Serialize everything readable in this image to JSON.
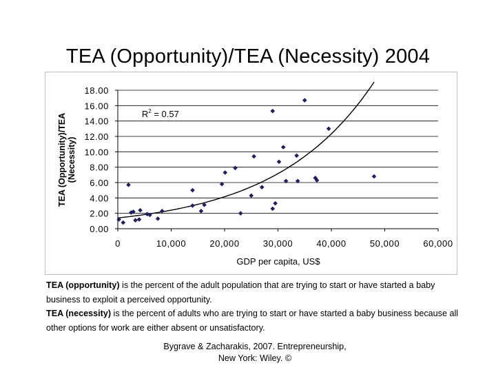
{
  "title": "TEA (Opportunity)/TEA (Necessity) 2004",
  "notes": [
    {
      "term": "TEA (opportunity)",
      "text": " is the percent of the adult population that are trying to start or have started a baby business to exploit a perceived opportunity."
    },
    {
      "term": "TEA (necessity)",
      "text": " is the percent of adults who are trying to start or have started a baby business because all other options for work are either absent or unsatisfactory."
    }
  ],
  "citation": {
    "line1": "Bygrave & Zacharakis, 2007.  Entrepreneurship,",
    "line2": "New York: Wiley.  ©"
  },
  "colors": {
    "points": "#1f1f5c",
    "trend": "#000000",
    "grid": "#000000"
  },
  "chart_data": {
    "type": "scatter",
    "xlabel": "GDP per capita, US$",
    "ylabel": "TEA (Opportunity)/TEA (Necessity)",
    "xlim": [
      0,
      60000
    ],
    "ylim": [
      0,
      18
    ],
    "xticks": [
      0,
      10000,
      20000,
      30000,
      40000,
      50000,
      60000
    ],
    "xtick_labels": [
      "0",
      "10,000",
      "20,000",
      "30,000",
      "40,000",
      "50,000",
      "60,000"
    ],
    "yticks": [
      0,
      2,
      4,
      6,
      8,
      10,
      12,
      14,
      16,
      18
    ],
    "ytick_labels": [
      "0.00",
      "2.00",
      "4.00",
      "6.00",
      "8.00",
      "10.00",
      "12.00",
      "14.00",
      "16.00",
      "18.00"
    ],
    "grid": "horizontal",
    "annotation": {
      "text": "R",
      "sup": "2",
      "rest": " = 0.57",
      "x": 4500,
      "y": 14.5
    },
    "trendline": {
      "type": "exponential",
      "a": 1.4,
      "b": 5.44e-05,
      "x_range": [
        0,
        48000
      ]
    },
    "points": [
      [
        200,
        1.2
      ],
      [
        1000,
        0.8
      ],
      [
        2000,
        5.7
      ],
      [
        2500,
        2.1
      ],
      [
        2900,
        2.2
      ],
      [
        3300,
        1.1
      ],
      [
        4000,
        1.2
      ],
      [
        4200,
        2.4
      ],
      [
        5500,
        1.9
      ],
      [
        6000,
        1.8
      ],
      [
        7500,
        1.3
      ],
      [
        8300,
        2.3
      ],
      [
        14000,
        5.0
      ],
      [
        14000,
        3.0
      ],
      [
        15600,
        2.3
      ],
      [
        16200,
        3.1
      ],
      [
        19500,
        5.8
      ],
      [
        20100,
        7.3
      ],
      [
        22000,
        7.9
      ],
      [
        23000,
        2.0
      ],
      [
        25000,
        4.3
      ],
      [
        25500,
        9.4
      ],
      [
        27000,
        5.4
      ],
      [
        29000,
        15.3
      ],
      [
        29000,
        2.6
      ],
      [
        29500,
        3.3
      ],
      [
        30200,
        8.7
      ],
      [
        31000,
        10.6
      ],
      [
        31500,
        6.2
      ],
      [
        33500,
        9.5
      ],
      [
        33700,
        6.2
      ],
      [
        35000,
        16.7
      ],
      [
        37000,
        6.6
      ],
      [
        37300,
        6.3
      ],
      [
        39500,
        13.0
      ],
      [
        48000,
        6.8
      ]
    ]
  }
}
